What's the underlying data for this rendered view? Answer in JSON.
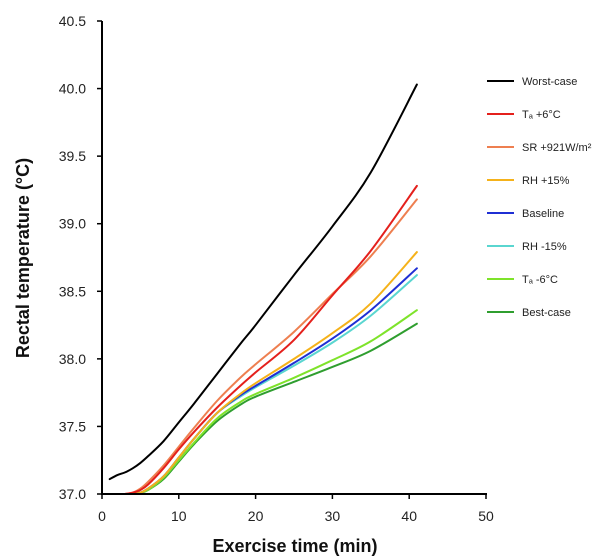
{
  "chart_data": {
    "type": "line",
    "xlabel": "Exercise time (min)",
    "ylabel": "Rectal temperature (°C)",
    "xlim": [
      0,
      50
    ],
    "ylim": [
      37.0,
      40.5
    ],
    "xticks": [
      0,
      10,
      20,
      30,
      40,
      50
    ],
    "xtick_labels": [
      "0",
      "10",
      "20",
      "30",
      "40",
      "50"
    ],
    "yticks": [
      37.0,
      37.5,
      38.0,
      38.5,
      39.0,
      39.5,
      40.0,
      40.5
    ],
    "ytick_labels": [
      "37.0",
      "37.5",
      "38.0",
      "38.5",
      "39.0",
      "39.5",
      "40.0",
      "40.5"
    ],
    "grid": false,
    "legend_position": "right",
    "x": [
      1,
      2,
      3,
      4,
      5,
      6,
      8,
      10,
      12,
      15,
      18,
      20,
      25,
      30,
      35,
      41
    ],
    "series": [
      {
        "name": "Worst-case",
        "color": "#000000",
        "values": [
          37.11,
          37.14,
          37.16,
          37.19,
          37.23,
          37.28,
          37.39,
          37.53,
          37.67,
          37.89,
          38.11,
          38.25,
          38.62,
          38.98,
          39.38,
          40.03
        ]
      },
      {
        "name": "Tₐ +6°C",
        "color": "#e4201c",
        "values": [
          null,
          null,
          37.0,
          37.01,
          37.03,
          37.07,
          37.19,
          37.33,
          37.46,
          37.64,
          37.8,
          37.9,
          38.14,
          38.47,
          38.8,
          39.28
        ]
      },
      {
        "name": "SR +921W/m²",
        "color": "#ee7f50",
        "values": [
          null,
          null,
          37.0,
          37.01,
          37.04,
          37.09,
          37.21,
          37.35,
          37.49,
          37.69,
          37.86,
          37.96,
          38.2,
          38.48,
          38.76,
          39.18
        ]
      },
      {
        "name": "RH +15%",
        "color": "#f5b21a",
        "values": [
          null,
          null,
          null,
          37.0,
          37.01,
          37.04,
          37.13,
          37.27,
          37.41,
          37.6,
          37.74,
          37.82,
          38.0,
          38.19,
          38.41,
          38.79
        ]
      },
      {
        "name": "Baseline",
        "color": "#1f2fd4",
        "values": [
          null,
          null,
          null,
          37.0,
          37.01,
          37.04,
          37.13,
          37.27,
          37.41,
          37.6,
          37.73,
          37.8,
          37.97,
          38.15,
          38.36,
          38.67
        ]
      },
      {
        "name": "RH -15%",
        "color": "#5ad6d0",
        "values": [
          null,
          null,
          null,
          37.0,
          37.01,
          37.04,
          37.13,
          37.27,
          37.41,
          37.6,
          37.72,
          37.79,
          37.95,
          38.12,
          38.32,
          38.62
        ]
      },
      {
        "name": "Tₐ -6°C",
        "color": "#7ee32a",
        "values": [
          null,
          null,
          null,
          37.0,
          37.01,
          37.03,
          37.12,
          37.25,
          37.38,
          37.56,
          37.68,
          37.74,
          37.86,
          37.99,
          38.13,
          38.36
        ]
      },
      {
        "name": "Best-case",
        "color": "#2f9e2f",
        "values": [
          null,
          null,
          null,
          37.0,
          37.01,
          37.03,
          37.11,
          37.24,
          37.37,
          37.54,
          37.66,
          37.72,
          37.83,
          37.94,
          38.06,
          38.26
        ]
      }
    ]
  }
}
